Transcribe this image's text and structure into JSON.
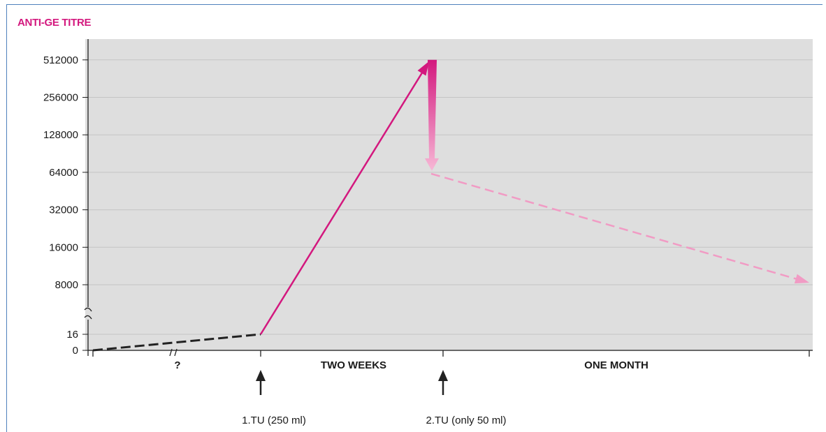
{
  "colors": {
    "title": "#d3187e",
    "plot_bg": "#dedede",
    "grid": "#c4c4c4",
    "rise": "#d3187e",
    "decline": "#f19bc4",
    "baseline": "#222222",
    "axis": "#222222",
    "frame": "#4f81bd"
  },
  "chart_data": {
    "type": "line",
    "title": "ANTI-GE TITRE",
    "y_scale": "log2 with axis break between 16 and 8000",
    "ylim": [
      0,
      512000
    ],
    "y_ticks": [
      "512000",
      "256000",
      "128000",
      "64000",
      "32000",
      "16000",
      "8000",
      "16",
      "0"
    ],
    "x_labels": [
      "?",
      "TWO WEEKS",
      "ONE MONTH"
    ],
    "grid": true,
    "series": [
      {
        "style": "dashed",
        "points": [
          {
            "x": "start",
            "y": 0
          },
          {
            "x": "1.TU",
            "y": 16
          }
        ]
      },
      {
        "style": "solid arrow",
        "points": [
          {
            "x": "1.TU",
            "y": 16
          },
          {
            "x": "2.TU",
            "y": 512000
          }
        ]
      },
      {
        "style": "downward arrow",
        "points": [
          {
            "x": "2.TU",
            "y": 512000
          },
          {
            "x": "2.TU",
            "y": 64000
          }
        ]
      },
      {
        "style": "dashed arrow",
        "points": [
          {
            "x": "2.TU",
            "y": 64000
          },
          {
            "x": "end",
            "y": 8000
          }
        ]
      }
    ],
    "events": [
      {
        "label": "1.TU (250 ml)",
        "x": "1.TU"
      },
      {
        "label": "2.TU (only 50 ml)",
        "x": "2.TU"
      }
    ]
  }
}
